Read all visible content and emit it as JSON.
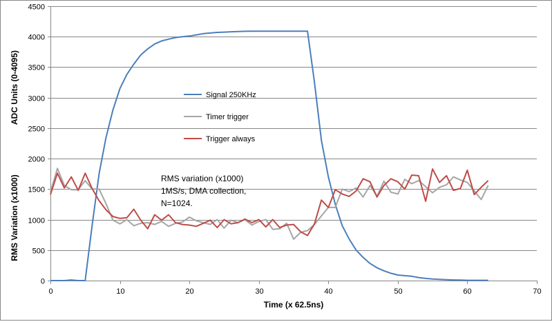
{
  "chart_data": {
    "type": "line",
    "title": "",
    "xlabel": "Time (x 62.5ns)",
    "ylabel": "ADC Units (0-4095)",
    "ylabel_secondary": "RMS Variation (x1000)",
    "xlim": [
      0,
      70
    ],
    "ylim": [
      0,
      4500
    ],
    "x_ticks": [
      0,
      10,
      20,
      30,
      40,
      50,
      60,
      70
    ],
    "y_ticks": [
      0,
      500,
      1000,
      1500,
      2000,
      2500,
      3000,
      3500,
      4000,
      4500
    ],
    "grid": "horizontal",
    "legend_position": "center-left",
    "annotation": [
      "RMS variation (x1000)",
      "1MS/s, DMA collection,",
      "N=1024."
    ],
    "series": [
      {
        "name": "Signal 250KHz",
        "color": "#4A7EBB",
        "x": [
          0,
          1,
          2,
          3,
          4,
          5,
          6,
          7,
          8,
          9,
          10,
          11,
          12,
          13,
          14,
          15,
          16,
          17,
          18,
          19,
          20,
          21,
          22,
          23,
          24,
          25,
          26,
          27,
          28,
          29,
          30,
          31,
          32,
          33,
          34,
          35,
          36,
          37,
          38,
          39,
          40,
          41,
          42,
          43,
          44,
          45,
          46,
          47,
          48,
          49,
          50,
          51,
          52,
          53,
          54,
          55,
          56,
          57,
          58,
          59,
          60,
          61,
          62,
          63
        ],
        "values": [
          0,
          0,
          0,
          10,
          0,
          0,
          900,
          1750,
          2350,
          2800,
          3150,
          3380,
          3550,
          3700,
          3800,
          3880,
          3930,
          3960,
          3985,
          4000,
          4010,
          4030,
          4050,
          4060,
          4070,
          4075,
          4080,
          4085,
          4088,
          4090,
          4090,
          4090,
          4090,
          4090,
          4090,
          4090,
          4090,
          4090,
          3250,
          2300,
          1700,
          1250,
          900,
          680,
          500,
          380,
          280,
          210,
          160,
          120,
          90,
          80,
          70,
          50,
          35,
          25,
          20,
          15,
          10,
          8,
          5,
          5,
          5,
          5
        ]
      },
      {
        "name": "Timer trigger",
        "color": "#A5A5A5",
        "x": [
          0,
          1,
          2,
          3,
          4,
          5,
          6,
          7,
          8,
          9,
          10,
          11,
          12,
          13,
          14,
          15,
          16,
          17,
          18,
          19,
          20,
          21,
          22,
          23,
          24,
          25,
          26,
          27,
          28,
          29,
          30,
          31,
          32,
          33,
          34,
          35,
          36,
          37,
          38,
          39,
          40,
          41,
          42,
          43,
          44,
          45,
          46,
          47,
          48,
          49,
          50,
          51,
          52,
          53,
          54,
          55,
          56,
          57,
          58,
          59,
          60,
          61,
          62,
          63
        ],
        "values": [
          1450,
          1840,
          1560,
          1490,
          1490,
          1640,
          1500,
          1500,
          1260,
          990,
          930,
          1000,
          900,
          940,
          950,
          920,
          970,
          890,
          940,
          960,
          1040,
          980,
          950,
          920,
          1000,
          860,
          990,
          950,
          1000,
          910,
          970,
          1000,
          840,
          850,
          940,
          680,
          790,
          820,
          920,
          1060,
          1200,
          1200,
          1500,
          1460,
          1520,
          1370,
          1560,
          1380,
          1630,
          1450,
          1420,
          1660,
          1590,
          1640,
          1540,
          1440,
          1530,
          1570,
          1700,
          1650,
          1610,
          1470,
          1330,
          1560
        ]
      },
      {
        "name": "Trigger always",
        "color": "#BE4B48",
        "x": [
          0,
          1,
          2,
          3,
          4,
          5,
          6,
          7,
          8,
          9,
          10,
          11,
          12,
          13,
          14,
          15,
          16,
          17,
          18,
          19,
          20,
          21,
          22,
          23,
          24,
          25,
          26,
          27,
          28,
          29,
          30,
          31,
          32,
          33,
          34,
          35,
          36,
          37,
          38,
          39,
          40,
          41,
          42,
          43,
          44,
          45,
          46,
          47,
          48,
          49,
          50,
          51,
          52,
          53,
          54,
          55,
          56,
          57,
          58,
          59,
          60,
          61,
          62,
          63
        ],
        "values": [
          1410,
          1760,
          1520,
          1700,
          1480,
          1760,
          1510,
          1310,
          1160,
          1050,
          1020,
          1030,
          1170,
          990,
          850,
          1080,
          990,
          1080,
          950,
          920,
          910,
          890,
          940,
          990,
          870,
          1000,
          930,
          950,
          1010,
          950,
          1000,
          880,
          1000,
          870,
          910,
          920,
          800,
          740,
          930,
          1320,
          1200,
          1490,
          1420,
          1380,
          1470,
          1670,
          1620,
          1370,
          1560,
          1670,
          1620,
          1500,
          1730,
          1720,
          1300,
          1830,
          1610,
          1720,
          1480,
          1510,
          1810,
          1410,
          1530,
          1640
        ]
      }
    ]
  }
}
